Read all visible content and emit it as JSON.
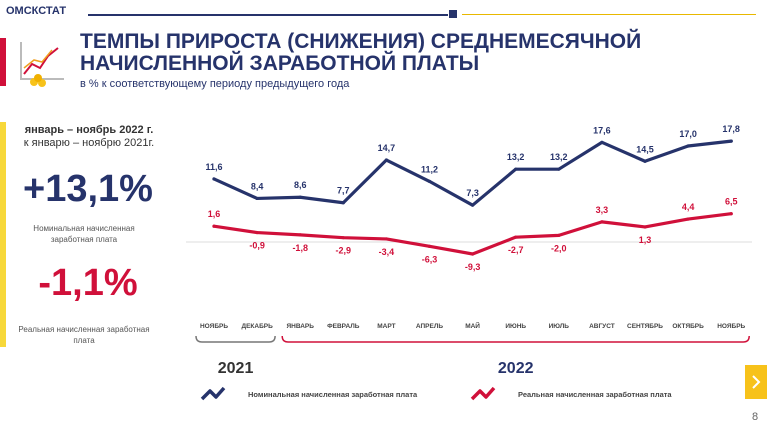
{
  "header": {
    "brand": "ОМСКСТАТ"
  },
  "title": "ТЕМПЫ ПРИРОСТА (СНИЖЕНИЯ) СРЕДНЕМЕСЯЧНОЙ НАЧИСЛЕННОЙ  ЗАРАБОТНОЙ ПЛАТЫ",
  "subtitle": "в % к соответствующему периоду предыдущего года",
  "summary": {
    "period": "январь – ноябрь 2022 г.",
    "comparison": "к январю – ноябрю 2021г.",
    "nominal_value": "+13,1%",
    "nominal_label": "Номинальная начисленная заработная плата",
    "real_value": "-1,1%",
    "real_label": "Реальная начисленная заработная плата"
  },
  "colors": {
    "nominal": "#26336b",
    "real": "#d0103a",
    "accent": "#f7d83a"
  },
  "chart_data": {
    "type": "line",
    "categories": [
      "НОЯБРЬ",
      "ДЕКАБРЬ",
      "ЯНВАРЬ",
      "ФЕВРАЛЬ",
      "МАРТ",
      "АПРЕЛЬ",
      "МАЙ",
      "ИЮНЬ",
      "ИЮЛЬ",
      "АВГУСТ",
      "СЕНТЯБРЬ",
      "ОКТЯБРЬ",
      "НОЯБРЬ"
    ],
    "years": [
      {
        "label": "2021",
        "from": 0,
        "to": 1
      },
      {
        "label": "2022",
        "from": 2,
        "to": 12
      }
    ],
    "series": [
      {
        "name": "Номинальная начисленная заработная плата",
        "values": [
          11.6,
          8.4,
          8.6,
          7.7,
          14.7,
          11.2,
          7.3,
          13.2,
          13.2,
          17.6,
          14.5,
          17.0,
          17.8
        ],
        "labels": [
          "11,6",
          "8,4",
          "8,6",
          "7,7",
          "14,7",
          "11,2",
          "7,3",
          "13,2",
          "13,2",
          "17,6",
          "14,5",
          "17,0",
          "17,8"
        ]
      },
      {
        "name": "Реальная  начисленная заработная плата",
        "values": [
          1.6,
          -0.9,
          -1.8,
          -2.9,
          -3.4,
          -6.3,
          -9.3,
          -2.7,
          -2.0,
          3.3,
          1.3,
          4.4,
          6.5
        ],
        "labels": [
          "1,6",
          "-0,9",
          "-1,8",
          "-2,9",
          "-3,4",
          "-6,3",
          "-9,3",
          "-2,7",
          "-2,0",
          "3,3",
          "1,3",
          "4,4",
          "6,5"
        ]
      }
    ],
    "legend": [
      "Номинальная начисленная заработная плата",
      "Реальная  начисленная заработная плата"
    ]
  },
  "footer": {
    "page": "8"
  }
}
